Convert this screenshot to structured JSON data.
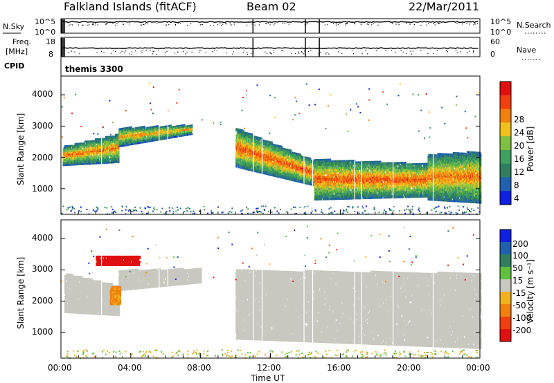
{
  "header": {
    "station": "Falkland Islands (fitACF)",
    "beam": "Beam 02",
    "date": "22/Mar/2011"
  },
  "strips": {
    "nsky_label": "N.Sky",
    "freq_label": "Freq.",
    "freq_unit": "[MHz]",
    "cpid_label": "CPID",
    "nsearch_label": "N.Search",
    "nave_label": "Nave",
    "noise_ticks_left": [
      "10^5",
      "10^0"
    ],
    "noise_ticks_right": [
      "10^5",
      "10^0"
    ],
    "freq_ticks": [
      "18",
      "8"
    ],
    "nave_ticks": [
      "60",
      "0"
    ],
    "cpid_text": "themis 3300"
  },
  "power_panel": {
    "ylabel": "Slant Range [km]",
    "yticks": [
      "4000",
      "3000",
      "2000",
      "1000"
    ],
    "colorbar_label": "Power [dB]",
    "colorbar_ticks": [
      "28",
      "24",
      "20",
      "16",
      "12",
      "8",
      "4"
    ]
  },
  "velocity_panel": {
    "ylabel": "Slant Range [km]",
    "yticks": [
      "4000",
      "3000",
      "2000",
      "1000"
    ],
    "colorbar_label": "Velocity [m s⁻¹]",
    "colorbar_ticks": [
      "200",
      "100",
      "50",
      "15",
      "-15",
      "-50",
      "-100",
      "-200"
    ]
  },
  "xaxis": {
    "ticks": [
      "00:00",
      "04:00",
      "08:00",
      "12:00",
      "16:00",
      "20:00",
      "00:00"
    ],
    "label": "Time UT"
  },
  "colors": {
    "power_scale": [
      "#1020e0",
      "#2060b0",
      "#308060",
      "#40a060",
      "#80c040",
      "#f0c020",
      "#f08010",
      "#f04010",
      "#e01010"
    ],
    "velocity_scale": [
      "#1020e0",
      "#2060b0",
      "#308060",
      "#60c040",
      "#c8c8c0",
      "#f0b020",
      "#f08010",
      "#f04010",
      "#e01010"
    ]
  },
  "chart_data": [
    {
      "type": "heatmap",
      "name": "Power",
      "x_range_hours": [
        0,
        24
      ],
      "y_range_km": [
        180,
        4600
      ],
      "colorbar_range_db": [
        0,
        32
      ],
      "scatter_bands": [
        {
          "t0": 0.1,
          "t1": 3.3,
          "r0": 1750,
          "r1": 2350,
          "ra": 1850,
          "rb": 2750,
          "level": 24
        },
        {
          "t0": 3.3,
          "t1": 7.5,
          "r0": 2350,
          "r1": 2950,
          "ra": 2750,
          "rb": 3050,
          "level": 22
        },
        {
          "t0": 10.0,
          "t1": 14.5,
          "r0": 1700,
          "r1": 2950,
          "ra": 1100,
          "rb": 1900,
          "level": 26
        },
        {
          "t0": 14.5,
          "t1": 21.0,
          "r0": 650,
          "r1": 1950,
          "ra": 750,
          "rb": 1800,
          "level": 26
        },
        {
          "t0": 21.0,
          "t1": 24.0,
          "r0": 650,
          "r1": 2100,
          "ra": 550,
          "rb": 2200,
          "level": 24
        }
      ]
    },
    {
      "type": "heatmap",
      "name": "Velocity",
      "x_range_hours": [
        0,
        24
      ],
      "y_range_km": [
        180,
        4600
      ],
      "colorbar_range_ms": [
        -250,
        250
      ],
      "scatter_bands": [
        {
          "t0": 0.2,
          "t1": 3.3,
          "r0": 1650,
          "r1": 2900,
          "ra": 1550,
          "rb": 2500,
          "velocity": 0
        },
        {
          "t0": 3.3,
          "t1": 8.0,
          "r0": 2350,
          "r1": 3000,
          "ra": 2600,
          "rb": 3050,
          "velocity": 0
        },
        {
          "t0": 2.8,
          "t1": 3.4,
          "r0": 1900,
          "r1": 2500,
          "ra": 1900,
          "rb": 2500,
          "velocity": -40
        },
        {
          "t0": 2.0,
          "t1": 4.5,
          "r0": 3150,
          "r1": 3450,
          "ra": 3150,
          "rb": 3450,
          "velocity": -180
        },
        {
          "t0": 10.0,
          "t1": 24.0,
          "r0": 800,
          "r1": 3000,
          "ra": 500,
          "rb": 2900,
          "velocity": 0
        }
      ]
    }
  ]
}
